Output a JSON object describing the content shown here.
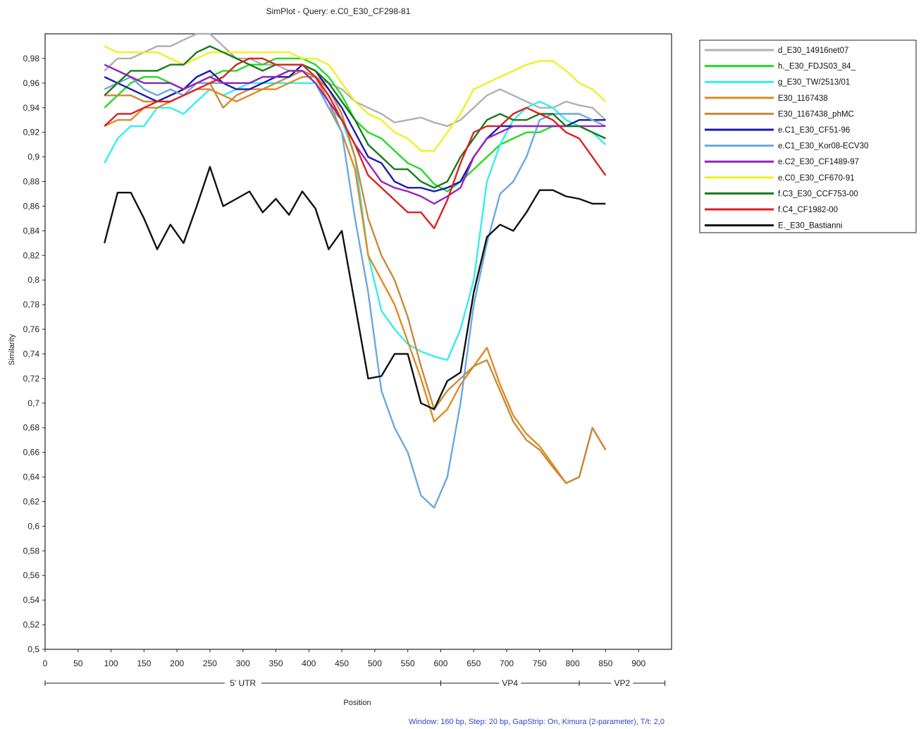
{
  "chart_data": {
    "type": "line",
    "title": "SimPlot - Query: e.C0_E30_CF298-81",
    "xlabel": "Position",
    "ylabel": "Similarity",
    "xlim": [
      0,
      950
    ],
    "ylim": [
      0.5,
      1.0
    ],
    "x_ticks": [
      "0",
      "50",
      "100",
      "150",
      "200",
      "250",
      "300",
      "350",
      "400",
      "450",
      "500",
      "550",
      "600",
      "650",
      "700",
      "750",
      "800",
      "850",
      "900"
    ],
    "y_ticks": [
      "0,5",
      "0,52",
      "0,54",
      "0,56",
      "0,58",
      "0,6",
      "0,62",
      "0,64",
      "0,66",
      "0,68",
      "0,7",
      "0,72",
      "0,74",
      "0,76",
      "0,78",
      "0,8",
      "0,82",
      "0,84",
      "0,86",
      "0,88",
      "0,9",
      "0,92",
      "0,94",
      "0,96",
      "0,98"
    ],
    "y_tick_values": [
      0.5,
      0.52,
      0.54,
      0.56,
      0.58,
      0.6,
      0.62,
      0.64,
      0.66,
      0.68,
      0.7,
      0.72,
      0.74,
      0.76,
      0.78,
      0.8,
      0.82,
      0.84,
      0.86,
      0.88,
      0.9,
      0.92,
      0.94,
      0.96,
      0.98
    ],
    "grid": false,
    "legend_position": "right",
    "regions": [
      {
        "label": "5' UTR",
        "start": 0,
        "end": 600
      },
      {
        "label": "VP4",
        "start": 600,
        "end": 810
      },
      {
        "label": "VP2",
        "start": 810,
        "end": 940
      }
    ],
    "footer": "Window: 160 bp, Step: 20 bp, GapStrip: On, Kimura (2-parameter), T/t: 2,0",
    "x": [
      90,
      110,
      130,
      150,
      170,
      190,
      210,
      230,
      250,
      270,
      290,
      310,
      330,
      350,
      370,
      390,
      410,
      430,
      450,
      470,
      490,
      510,
      530,
      550,
      570,
      590,
      610,
      630,
      650,
      670,
      690,
      710,
      730,
      750,
      770,
      790,
      810,
      830,
      850
    ],
    "series": [
      {
        "name": "d_E30_14916net07",
        "color": "#b0b0b0",
        "values": [
          0.97,
          0.98,
          0.98,
          0.985,
          0.99,
          0.99,
          0.995,
          1.0,
          1.0,
          0.99,
          0.98,
          0.98,
          0.975,
          0.975,
          0.97,
          0.97,
          0.965,
          0.96,
          0.955,
          0.945,
          0.94,
          0.935,
          0.928,
          0.93,
          0.932,
          0.928,
          0.925,
          0.93,
          0.94,
          0.95,
          0.955,
          0.95,
          0.945,
          0.94,
          0.94,
          0.945,
          0.942,
          0.94,
          0.93
        ]
      },
      {
        "name": "h._E30_FDJS03_84_",
        "color": "#22dd22",
        "values": [
          0.94,
          0.95,
          0.96,
          0.965,
          0.965,
          0.96,
          0.955,
          0.96,
          0.965,
          0.97,
          0.97,
          0.975,
          0.975,
          0.98,
          0.98,
          0.98,
          0.975,
          0.965,
          0.95,
          0.93,
          0.92,
          0.915,
          0.905,
          0.895,
          0.89,
          0.878,
          0.872,
          0.88,
          0.89,
          0.9,
          0.91,
          0.915,
          0.92,
          0.92,
          0.925,
          0.925,
          0.925,
          0.92,
          0.915
        ]
      },
      {
        "name": "g_E30_TW/2513/01",
        "color": "#33eeee",
        "values": [
          0.895,
          0.915,
          0.925,
          0.925,
          0.94,
          0.94,
          0.935,
          0.945,
          0.955,
          0.95,
          0.955,
          0.96,
          0.96,
          0.96,
          0.96,
          0.96,
          0.96,
          0.94,
          0.93,
          0.9,
          0.82,
          0.775,
          0.76,
          0.748,
          0.742,
          0.738,
          0.735,
          0.76,
          0.8,
          0.88,
          0.91,
          0.93,
          0.94,
          0.945,
          0.94,
          0.93,
          0.925,
          0.92,
          0.91
        ]
      },
      {
        "name": "E30_1167438",
        "color": "#e08a20",
        "values": [
          0.925,
          0.93,
          0.93,
          0.94,
          0.94,
          0.945,
          0.95,
          0.955,
          0.955,
          0.95,
          0.945,
          0.95,
          0.955,
          0.955,
          0.96,
          0.965,
          0.965,
          0.945,
          0.92,
          0.89,
          0.82,
          0.8,
          0.78,
          0.75,
          0.72,
          0.685,
          0.695,
          0.715,
          0.73,
          0.745,
          0.715,
          0.69,
          0.675,
          0.665,
          0.65,
          0.635,
          0.64,
          0.68,
          0.662
        ]
      },
      {
        "name": "E30_1167438_phMC",
        "color": "#c88a3a",
        "values": [
          0.95,
          0.95,
          0.95,
          0.945,
          0.945,
          0.95,
          0.955,
          0.96,
          0.96,
          0.94,
          0.95,
          0.955,
          0.955,
          0.96,
          0.965,
          0.97,
          0.965,
          0.955,
          0.935,
          0.9,
          0.85,
          0.82,
          0.8,
          0.77,
          0.73,
          0.695,
          0.71,
          0.72,
          0.73,
          0.735,
          0.71,
          0.685,
          0.67,
          0.662,
          0.648,
          0.635,
          0.64,
          0.68,
          0.662
        ]
      },
      {
        "name": "e.C1_E30_CF51-96",
        "color": "#1a1ab0",
        "values": [
          0.965,
          0.96,
          0.955,
          0.95,
          0.945,
          0.95,
          0.955,
          0.965,
          0.97,
          0.96,
          0.955,
          0.955,
          0.96,
          0.965,
          0.965,
          0.975,
          0.97,
          0.955,
          0.94,
          0.92,
          0.9,
          0.895,
          0.88,
          0.875,
          0.875,
          0.872,
          0.875,
          0.88,
          0.9,
          0.915,
          0.925,
          0.925,
          0.925,
          0.925,
          0.925,
          0.925,
          0.93,
          0.93,
          0.93
        ]
      },
      {
        "name": "e.C1_E30_Kor08-ECV30",
        "color": "#6aa8e0",
        "values": [
          0.955,
          0.96,
          0.965,
          0.955,
          0.95,
          0.955,
          0.95,
          0.96,
          0.96,
          0.96,
          0.96,
          0.96,
          0.965,
          0.965,
          0.97,
          0.97,
          0.96,
          0.94,
          0.92,
          0.85,
          0.79,
          0.71,
          0.68,
          0.66,
          0.625,
          0.615,
          0.64,
          0.7,
          0.78,
          0.83,
          0.87,
          0.88,
          0.9,
          0.93,
          0.935,
          0.935,
          0.935,
          0.93,
          0.925
        ]
      },
      {
        "name": "e.C2_E30_CF1489-97",
        "color": "#9922bb",
        "values": [
          0.975,
          0.97,
          0.965,
          0.96,
          0.96,
          0.96,
          0.955,
          0.96,
          0.965,
          0.96,
          0.96,
          0.96,
          0.965,
          0.965,
          0.97,
          0.97,
          0.96,
          0.945,
          0.93,
          0.91,
          0.895,
          0.88,
          0.875,
          0.872,
          0.868,
          0.862,
          0.868,
          0.875,
          0.9,
          0.915,
          0.92,
          0.925,
          0.925,
          0.925,
          0.925,
          0.925,
          0.925,
          0.925,
          0.925
        ]
      },
      {
        "name": "e.C0_E30_CF670-91",
        "color": "#f0f020",
        "values": [
          0.99,
          0.985,
          0.985,
          0.985,
          0.985,
          0.98,
          0.975,
          0.98,
          0.985,
          0.985,
          0.985,
          0.985,
          0.985,
          0.985,
          0.985,
          0.98,
          0.98,
          0.975,
          0.96,
          0.945,
          0.935,
          0.93,
          0.92,
          0.915,
          0.905,
          0.905,
          0.92,
          0.935,
          0.955,
          0.96,
          0.965,
          0.97,
          0.975,
          0.978,
          0.978,
          0.97,
          0.96,
          0.955,
          0.945
        ]
      },
      {
        "name": "f.C3_E30_CCF753-00",
        "color": "#1a7a1a",
        "values": [
          0.95,
          0.96,
          0.97,
          0.97,
          0.97,
          0.975,
          0.975,
          0.985,
          0.99,
          0.985,
          0.98,
          0.975,
          0.97,
          0.975,
          0.975,
          0.975,
          0.97,
          0.96,
          0.945,
          0.93,
          0.91,
          0.9,
          0.89,
          0.89,
          0.88,
          0.875,
          0.88,
          0.9,
          0.915,
          0.93,
          0.935,
          0.93,
          0.93,
          0.935,
          0.935,
          0.925,
          0.925,
          0.92,
          0.915
        ]
      },
      {
        "name": "f.C4_CF1982-00",
        "color": "#dd2020",
        "values": [
          0.925,
          0.935,
          0.935,
          0.94,
          0.945,
          0.945,
          0.95,
          0.955,
          0.96,
          0.965,
          0.975,
          0.98,
          0.98,
          0.975,
          0.975,
          0.975,
          0.965,
          0.95,
          0.93,
          0.91,
          0.885,
          0.875,
          0.865,
          0.855,
          0.855,
          0.842,
          0.865,
          0.895,
          0.92,
          0.925,
          0.925,
          0.935,
          0.94,
          0.935,
          0.93,
          0.92,
          0.915,
          0.9,
          0.885
        ]
      },
      {
        "name": "E._E30_Bastianni",
        "color": "#111111",
        "values": [
          0.83,
          0.871,
          0.871,
          0.85,
          0.825,
          0.845,
          0.83,
          0.86,
          0.892,
          0.86,
          0.866,
          0.872,
          0.855,
          0.866,
          0.853,
          0.872,
          0.858,
          0.825,
          0.84,
          0.78,
          0.72,
          0.722,
          0.74,
          0.74,
          0.7,
          0.695,
          0.718,
          0.725,
          0.79,
          0.835,
          0.845,
          0.84,
          0.855,
          0.873,
          0.873,
          0.868,
          0.866,
          0.862,
          0.862
        ]
      }
    ]
  }
}
